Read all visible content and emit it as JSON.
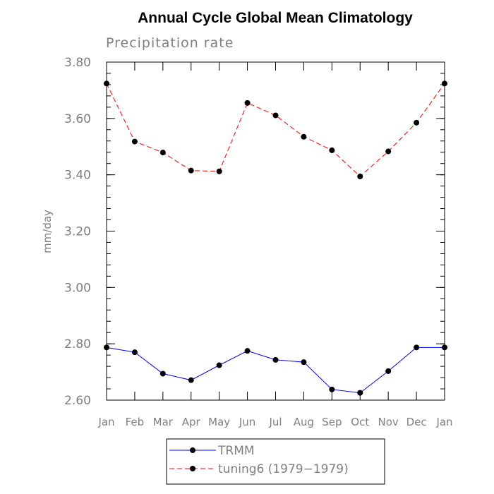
{
  "chart_data": {
    "type": "line",
    "title": "Annual Cycle Global Mean Climatology",
    "subtitle": "Precipitation rate",
    "xlabel": "",
    "ylabel": "mm/day",
    "categories": [
      "Jan",
      "Feb",
      "Mar",
      "Apr",
      "May",
      "Jun",
      "Jul",
      "Aug",
      "Sep",
      "Oct",
      "Nov",
      "Dec",
      "Jan"
    ],
    "ylim": [
      2.6,
      3.8
    ],
    "yticks": [
      "2.60",
      "2.80",
      "3.00",
      "3.20",
      "3.40",
      "3.60",
      "3.80"
    ],
    "series": [
      {
        "name": "TRMM",
        "color": "#0000ff",
        "line_style": "solid",
        "marker": "filled-circle",
        "values": [
          2.787,
          2.77,
          2.694,
          2.671,
          2.724,
          2.775,
          2.743,
          2.735,
          2.638,
          2.626,
          2.703,
          2.787,
          2.787
        ]
      },
      {
        "name": "tuning6 (1979−1979)",
        "color": "#ff0000",
        "line_style": "dashed",
        "marker": "filled-circle",
        "values": [
          3.724,
          3.518,
          3.479,
          3.415,
          3.412,
          3.655,
          3.611,
          3.535,
          3.487,
          3.394,
          3.483,
          3.585,
          3.724
        ]
      }
    ],
    "grid": false,
    "legend_position": "bottom"
  }
}
